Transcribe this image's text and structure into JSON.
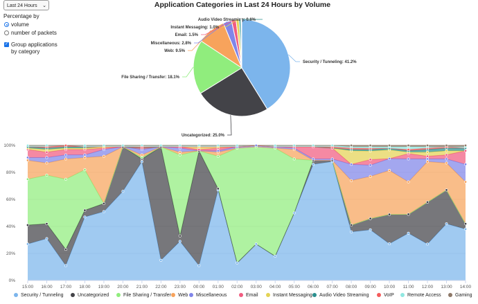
{
  "controls": {
    "time_range": "Last 24 Hours",
    "percentage_by_label": "Percentage by",
    "opt_volume": "volume",
    "opt_packets": "number of packets",
    "group_label_1": "Group applications",
    "group_label_2": "by category"
  },
  "chart_data": [
    {
      "type": "pie",
      "title": "Application Categories in Last 24 Hours by Volume",
      "slices": [
        {
          "name": "Security / Tunneling",
          "value": 41.2,
          "label": "Security / Tunneling: 41.2%",
          "color": "#7cb5ec"
        },
        {
          "name": "Uncategorized",
          "value": 25.0,
          "label": "Uncategorized: 25.0%",
          "color": "#434348"
        },
        {
          "name": "File Sharing / Transfer",
          "value": 18.1,
          "label": "File Sharing / Transfer: 18.1%",
          "color": "#90ed7d"
        },
        {
          "name": "Web",
          "value": 9.5,
          "label": "Web: 9.5%",
          "color": "#f7a35c"
        },
        {
          "name": "Miscellaneous",
          "value": 2.8,
          "label": "Miscellaneous: 2.8%",
          "color": "#8085e9"
        },
        {
          "name": "Email",
          "value": 1.5,
          "label": "Email: 1.5%",
          "color": "#f15c80"
        },
        {
          "name": "Instant Messaging",
          "value": 1.0,
          "label": "Instant Messaging: 1.0%",
          "color": "#e4d354"
        },
        {
          "name": "Audio Video Streaming",
          "value": 0.6,
          "label": "Audio Video Streaming: 0.6%",
          "color": "#2b908f"
        },
        {
          "name": "VoIP",
          "value": 0.2,
          "label": "",
          "color": "#f45b5b"
        },
        {
          "name": "Remote Access",
          "value": 0.1,
          "label": "",
          "color": "#91e8e1"
        }
      ]
    },
    {
      "type": "area",
      "stacking": "percent",
      "x": [
        "15:00",
        "16:00",
        "17:00",
        "18:00",
        "19:00",
        "20:00",
        "21:00",
        "22:00",
        "23:00",
        "00:00",
        "01:00",
        "02:00",
        "03:00",
        "04:00",
        "05:00",
        "06:00",
        "07:00",
        "08:00",
        "09:00",
        "10:00",
        "11:00",
        "12:00",
        "13:00",
        "14:00"
      ],
      "yticks": [
        "0%",
        "20%",
        "40%",
        "60%",
        "80%",
        "100%"
      ],
      "ylim": [
        0,
        100
      ],
      "series": [
        {
          "name": "Security / Tunneling",
          "color": "#7cb5ec",
          "values": [
            27,
            31,
            11,
            47,
            51,
            66,
            88,
            15,
            29,
            11,
            67,
            13,
            27,
            18,
            50,
            86,
            88,
            36,
            36,
            25,
            35,
            27,
            42,
            38
          ]
        },
        {
          "name": "Uncategorized",
          "color": "#434348",
          "values": [
            14,
            11,
            12,
            5,
            6,
            33,
            2,
            84,
            4,
            85,
            1,
            0,
            0,
            0,
            0,
            3,
            1,
            5,
            8,
            20,
            14,
            31,
            25,
            4
          ]
        },
        {
          "name": "File Sharing / Transfer",
          "color": "#90ed7d",
          "values": [
            34,
            36,
            52,
            30,
            0,
            0,
            1,
            0,
            60,
            0,
            24,
            85,
            72,
            80,
            40,
            0,
            0,
            0,
            0,
            0,
            0,
            0,
            0,
            0
          ]
        },
        {
          "name": "Web",
          "color": "#f7a35c",
          "values": [
            14,
            9,
            15,
            9,
            35,
            0,
            2,
            0,
            2,
            0,
            3,
            0,
            0,
            0,
            7,
            0,
            0,
            33,
            30,
            30,
            24,
            30,
            20,
            31
          ]
        },
        {
          "name": "Miscellaneous",
          "color": "#8085e9",
          "values": [
            2,
            4,
            3,
            2,
            5,
            0,
            4,
            0,
            3,
            0,
            1,
            1,
            1,
            1,
            1,
            1,
            1,
            12,
            8,
            8,
            17,
            2,
            3,
            13
          ]
        },
        {
          "name": "Email",
          "color": "#f15c80",
          "values": [
            6,
            4,
            4,
            4,
            1,
            0,
            1,
            0,
            1,
            1,
            2,
            0,
            0,
            0,
            1,
            9,
            8,
            0,
            4,
            0,
            4,
            2,
            3,
            10
          ]
        },
        {
          "name": "Instant Messaging",
          "color": "#e4d354",
          "values": [
            1,
            2,
            1,
            1,
            1,
            0,
            0,
            0,
            0,
            2,
            1,
            0,
            0,
            0,
            0,
            0,
            0,
            10,
            6,
            6,
            1,
            3,
            3,
            0
          ]
        },
        {
          "name": "Audio Video Streaming",
          "color": "#2b908f",
          "values": [
            1,
            1,
            1,
            1,
            0,
            0,
            0,
            0,
            0,
            0,
            0,
            0,
            0,
            0,
            0,
            0,
            0,
            1,
            1,
            1,
            1,
            2,
            2,
            2
          ]
        },
        {
          "name": "VoIP",
          "color": "#f45b5b",
          "values": [
            0,
            1,
            1,
            0,
            0,
            0,
            1,
            0,
            0,
            0,
            0,
            0,
            0,
            0,
            0,
            0,
            1,
            1,
            1,
            0,
            1,
            1,
            1,
            0
          ]
        },
        {
          "name": "Remote Access",
          "color": "#91e8e1",
          "values": [
            1,
            1,
            0,
            1,
            1,
            1,
            1,
            1,
            1,
            1,
            1,
            1,
            0,
            1,
            1,
            1,
            1,
            1,
            1,
            1,
            2,
            1,
            0,
            1
          ]
        },
        {
          "name": "Gaming",
          "color": "#8d7867",
          "values": [
            0,
            0,
            0,
            0,
            0,
            0,
            0,
            0,
            0,
            0,
            0,
            0,
            0,
            0,
            0,
            0,
            0,
            1,
            1,
            1,
            1,
            1,
            1,
            1
          ]
        }
      ]
    }
  ]
}
